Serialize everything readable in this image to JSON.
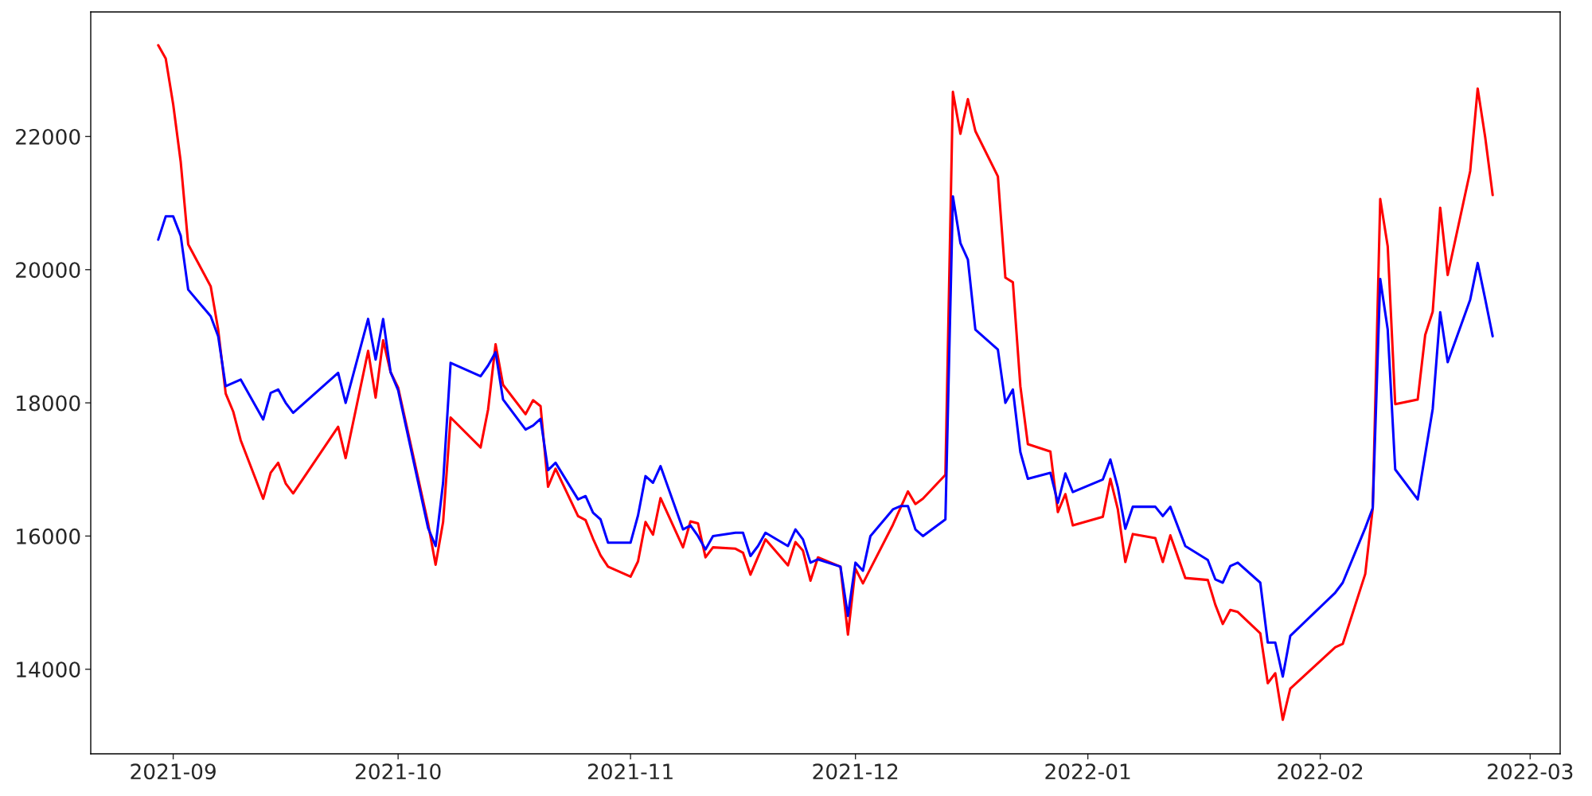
{
  "chart_data": {
    "type": "line",
    "xlim": [
      "2021-08-21",
      "2022-03-05"
    ],
    "xticks": [
      {
        "value": "2021-09-01",
        "label": "2021-09"
      },
      {
        "value": "2021-10-01",
        "label": "2021-10"
      },
      {
        "value": "2021-11-01",
        "label": "2021-11"
      },
      {
        "value": "2021-12-01",
        "label": "2021-12"
      },
      {
        "value": "2022-01-01",
        "label": "2022-01"
      },
      {
        "value": "2022-02-01",
        "label": "2022-02"
      },
      {
        "value": "2022-03-01",
        "label": "2022-03"
      }
    ],
    "ylim": [
      12730,
      23870
    ],
    "yticks": [
      14000,
      16000,
      18000,
      20000,
      22000
    ],
    "grid": false,
    "line_style": "solid",
    "series": [
      {
        "color": "#ff0000",
        "x": [
          "2021-08-30",
          "2021-08-31",
          "2021-09-01",
          "2021-09-02",
          "2021-09-03",
          "2021-09-06",
          "2021-09-07",
          "2021-09-08",
          "2021-09-09",
          "2021-09-10",
          "2021-09-13",
          "2021-09-14",
          "2021-09-15",
          "2021-09-16",
          "2021-09-17",
          "2021-09-23",
          "2021-09-24",
          "2021-09-27",
          "2021-09-28",
          "2021-09-29",
          "2021-09-30",
          "2021-10-01",
          "2021-10-05",
          "2021-10-06",
          "2021-10-07",
          "2021-10-08",
          "2021-10-12",
          "2021-10-13",
          "2021-10-14",
          "2021-10-15",
          "2021-10-18",
          "2021-10-19",
          "2021-10-20",
          "2021-10-21",
          "2021-10-22",
          "2021-10-25",
          "2021-10-26",
          "2021-10-27",
          "2021-10-28",
          "2021-10-29",
          "2021-11-01",
          "2021-11-02",
          "2021-11-03",
          "2021-11-04",
          "2021-11-05",
          "2021-11-08",
          "2021-11-09",
          "2021-11-10",
          "2021-11-11",
          "2021-11-12",
          "2021-11-15",
          "2021-11-16",
          "2021-11-17",
          "2021-11-19",
          "2021-11-22",
          "2021-11-23",
          "2021-11-24",
          "2021-11-25",
          "2021-11-26",
          "2021-11-29",
          "2021-11-30",
          "2021-12-01",
          "2021-12-02",
          "2021-12-03",
          "2021-12-06",
          "2021-12-08",
          "2021-12-09",
          "2021-12-10",
          "2021-12-13",
          "2021-12-14",
          "2021-12-15",
          "2021-12-16",
          "2021-12-17",
          "2021-12-20",
          "2021-12-21",
          "2021-12-22",
          "2021-12-23",
          "2021-12-24",
          "2021-12-27",
          "2021-12-28",
          "2021-12-29",
          "2021-12-30",
          "2022-01-03",
          "2022-01-04",
          "2022-01-05",
          "2022-01-06",
          "2022-01-07",
          "2022-01-10",
          "2022-01-11",
          "2022-01-12",
          "2022-01-14",
          "2022-01-17",
          "2022-01-18",
          "2022-01-19",
          "2022-01-20",
          "2022-01-21",
          "2022-01-24",
          "2022-01-25",
          "2022-01-26",
          "2022-01-27",
          "2022-01-28",
          "2022-02-03",
          "2022-02-04",
          "2022-02-07",
          "2022-02-08",
          "2022-02-09",
          "2022-02-10",
          "2022-02-11",
          "2022-02-14",
          "2022-02-15",
          "2022-02-16",
          "2022-02-17",
          "2022-02-18",
          "2022-02-21",
          "2022-02-22",
          "2022-02-23",
          "2022-02-24"
        ],
        "values": [
          23370,
          23170,
          22480,
          21620,
          20380,
          19750,
          19100,
          18140,
          17870,
          17440,
          16560,
          16950,
          17100,
          16790,
          16640,
          17640,
          17170,
          18780,
          18080,
          18940,
          18460,
          18230,
          16190,
          15570,
          16210,
          17780,
          17330,
          17900,
          18880,
          18270,
          17830,
          18040,
          17950,
          16740,
          17010,
          16300,
          16240,
          15960,
          15710,
          15540,
          15390,
          15620,
          16210,
          16020,
          16570,
          15830,
          16220,
          16190,
          15680,
          15830,
          15810,
          15750,
          15420,
          15950,
          15560,
          15910,
          15780,
          15330,
          15680,
          15540,
          14520,
          15510,
          15290,
          15510,
          16170,
          16670,
          16480,
          16560,
          16920,
          22670,
          22040,
          22560,
          22080,
          21400,
          19880,
          19810,
          18250,
          17380,
          17270,
          16360,
          16630,
          16160,
          16290,
          16860,
          16400,
          15610,
          16030,
          15970,
          15610,
          16010,
          15370,
          15340,
          14970,
          14680,
          14890,
          14860,
          14540,
          13790,
          13940,
          13240,
          13710,
          14330,
          14380,
          15430,
          16420,
          21060,
          20350,
          17980,
          18050,
          19020,
          19370,
          20930,
          19920,
          21480,
          22720,
          21990,
          21120
        ]
      },
      {
        "color": "#0000ff",
        "x": [
          "2021-08-30",
          "2021-08-31",
          "2021-09-01",
          "2021-09-02",
          "2021-09-03",
          "2021-09-06",
          "2021-09-07",
          "2021-09-08",
          "2021-09-10",
          "2021-09-13",
          "2021-09-14",
          "2021-09-15",
          "2021-09-16",
          "2021-09-17",
          "2021-09-23",
          "2021-09-24",
          "2021-09-27",
          "2021-09-28",
          "2021-09-29",
          "2021-09-30",
          "2021-10-01",
          "2021-10-05",
          "2021-10-06",
          "2021-10-07",
          "2021-10-08",
          "2021-10-12",
          "2021-10-13",
          "2021-10-14",
          "2021-10-15",
          "2021-10-18",
          "2021-10-19",
          "2021-10-20",
          "2021-10-21",
          "2021-10-22",
          "2021-10-25",
          "2021-10-26",
          "2021-10-27",
          "2021-10-28",
          "2021-10-29",
          "2021-11-01",
          "2021-11-02",
          "2021-11-03",
          "2021-11-04",
          "2021-11-05",
          "2021-11-08",
          "2021-11-09",
          "2021-11-10",
          "2021-11-11",
          "2021-11-12",
          "2021-11-15",
          "2021-11-16",
          "2021-11-17",
          "2021-11-18",
          "2021-11-19",
          "2021-11-22",
          "2021-11-23",
          "2021-11-24",
          "2021-11-25",
          "2021-11-26",
          "2021-11-29",
          "2021-11-30",
          "2021-12-01",
          "2021-12-02",
          "2021-12-03",
          "2021-12-06",
          "2021-12-07",
          "2021-12-08",
          "2021-12-09",
          "2021-12-10",
          "2021-12-13",
          "2021-12-14",
          "2021-12-15",
          "2021-12-16",
          "2021-12-17",
          "2021-12-20",
          "2021-12-21",
          "2021-12-22",
          "2021-12-23",
          "2021-12-24",
          "2021-12-27",
          "2021-12-28",
          "2021-12-29",
          "2021-12-30",
          "2022-01-03",
          "2022-01-04",
          "2022-01-05",
          "2022-01-06",
          "2022-01-07",
          "2022-01-10",
          "2022-01-11",
          "2022-01-12",
          "2022-01-14",
          "2022-01-17",
          "2022-01-18",
          "2022-01-19",
          "2022-01-20",
          "2022-01-21",
          "2022-01-24",
          "2022-01-25",
          "2022-01-26",
          "2022-01-27",
          "2022-01-28",
          "2022-02-03",
          "2022-02-04",
          "2022-02-07",
          "2022-02-08",
          "2022-02-09",
          "2022-02-10",
          "2022-02-11",
          "2022-02-14",
          "2022-02-16",
          "2022-02-17",
          "2022-02-18",
          "2022-02-21",
          "2022-02-22",
          "2022-02-23",
          "2022-02-24"
        ],
        "values": [
          20450,
          20800,
          20800,
          20510,
          19700,
          19300,
          19000,
          18250,
          18350,
          17750,
          18150,
          18200,
          18000,
          17850,
          18450,
          18000,
          19260,
          18650,
          19260,
          18460,
          18190,
          16120,
          15850,
          16800,
          18600,
          18400,
          18560,
          18760,
          18050,
          17600,
          17660,
          17760,
          16990,
          17100,
          16550,
          16600,
          16350,
          16250,
          15900,
          15900,
          16310,
          16900,
          16800,
          17050,
          16100,
          16160,
          16000,
          15800,
          16000,
          16050,
          16050,
          15700,
          15850,
          16050,
          15850,
          16100,
          15950,
          15600,
          15650,
          15540,
          14800,
          15600,
          15480,
          16000,
          16400,
          16450,
          16450,
          16100,
          16000,
          16250,
          21100,
          20400,
          20150,
          19100,
          18800,
          18000,
          18200,
          17260,
          16860,
          16950,
          16500,
          16940,
          16660,
          16850,
          17150,
          16730,
          16110,
          16440,
          16440,
          16300,
          16440,
          15850,
          15640,
          15350,
          15300,
          15550,
          15600,
          15300,
          14400,
          14400,
          13890,
          14500,
          15150,
          15300,
          16120,
          16420,
          19860,
          19100,
          17000,
          16550,
          17910,
          19360,
          18610,
          19550,
          20100,
          19560,
          19000
        ]
      }
    ]
  }
}
